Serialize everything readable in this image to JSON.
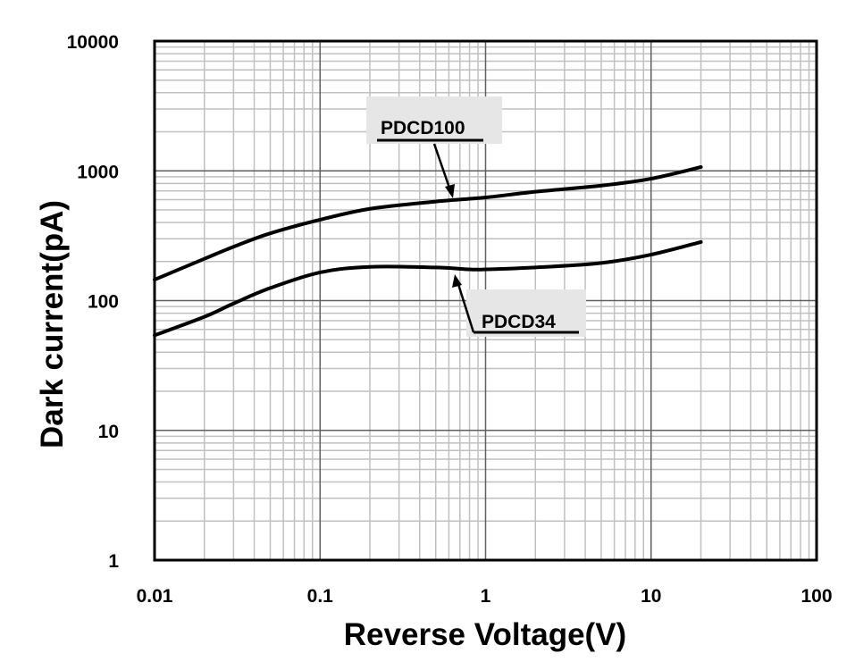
{
  "chart_data": {
    "type": "line",
    "title": "",
    "xlabel": "Reverse Voltage(V)",
    "ylabel": "Dark current(pA)",
    "xscale": "log",
    "yscale": "log",
    "xlim": [
      0.01,
      100
    ],
    "ylim": [
      1,
      10000
    ],
    "grid": true,
    "xticks": [
      "0.01",
      "0.1",
      "1",
      "10",
      "100"
    ],
    "yticks": [
      "1",
      "10",
      "100",
      "1000",
      "10000"
    ],
    "series": [
      {
        "name": "PDCD100",
        "x": [
          0.01,
          0.02,
          0.03,
          0.05,
          0.1,
          0.2,
          0.5,
          1,
          2,
          5,
          10,
          20
        ],
        "y": [
          145,
          210,
          260,
          330,
          420,
          510,
          580,
          624,
          690,
          770,
          870,
          1070
        ]
      },
      {
        "name": "PDCD34",
        "x": [
          0.01,
          0.02,
          0.03,
          0.05,
          0.1,
          0.2,
          0.5,
          0.8,
          1,
          2,
          5,
          10,
          20
        ],
        "y": [
          54,
          75,
          95,
          125,
          165,
          182,
          180,
          174,
          174,
          180,
          195,
          226,
          283
        ]
      }
    ],
    "annotations": [
      {
        "text": "PDCD100",
        "points_to_x": 0.65,
        "series": "PDCD100"
      },
      {
        "text": "PDCD34",
        "points_to_x": 0.75,
        "series": "PDCD34"
      }
    ]
  }
}
